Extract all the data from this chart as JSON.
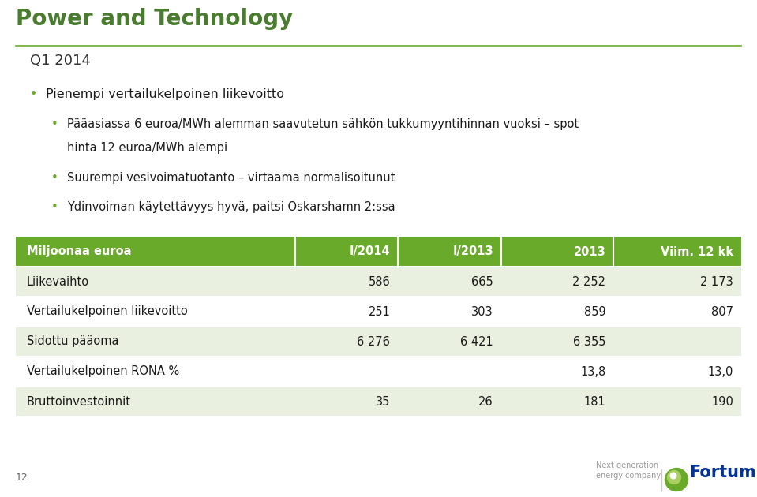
{
  "title": "Power and Technology",
  "subtitle": "Q1 2014",
  "table_header": [
    "Miljoonaa euroa",
    "I/2014",
    "I/2013",
    "2013",
    "Viim. 12 kk"
  ],
  "table_rows": [
    [
      "Liikevaihto",
      "586",
      "665",
      "2 252",
      "2 173"
    ],
    [
      "Vertailukelpoinen liikevoitto",
      "251",
      "303",
      "859",
      "807"
    ],
    [
      "Sidottu pääoma",
      "6 276",
      "6 421",
      "6 355",
      ""
    ],
    [
      "Vertailukelpoinen RONA %",
      "",
      "",
      "13,8",
      "13,0"
    ],
    [
      "Bruttoinvestoinnit",
      "35",
      "26",
      "181",
      "190"
    ]
  ],
  "header_bg": "#6aaa2a",
  "header_text_color": "#ffffff",
  "row_bg_odd": "#eaf0e0",
  "row_bg_even": "#ffffff",
  "title_color": "#4a7c2f",
  "bullet_color": "#6aaa2a",
  "line_color": "#6aaa2a",
  "page_num": "12",
  "fig_width": 9.59,
  "fig_height": 6.3,
  "dpi": 100
}
